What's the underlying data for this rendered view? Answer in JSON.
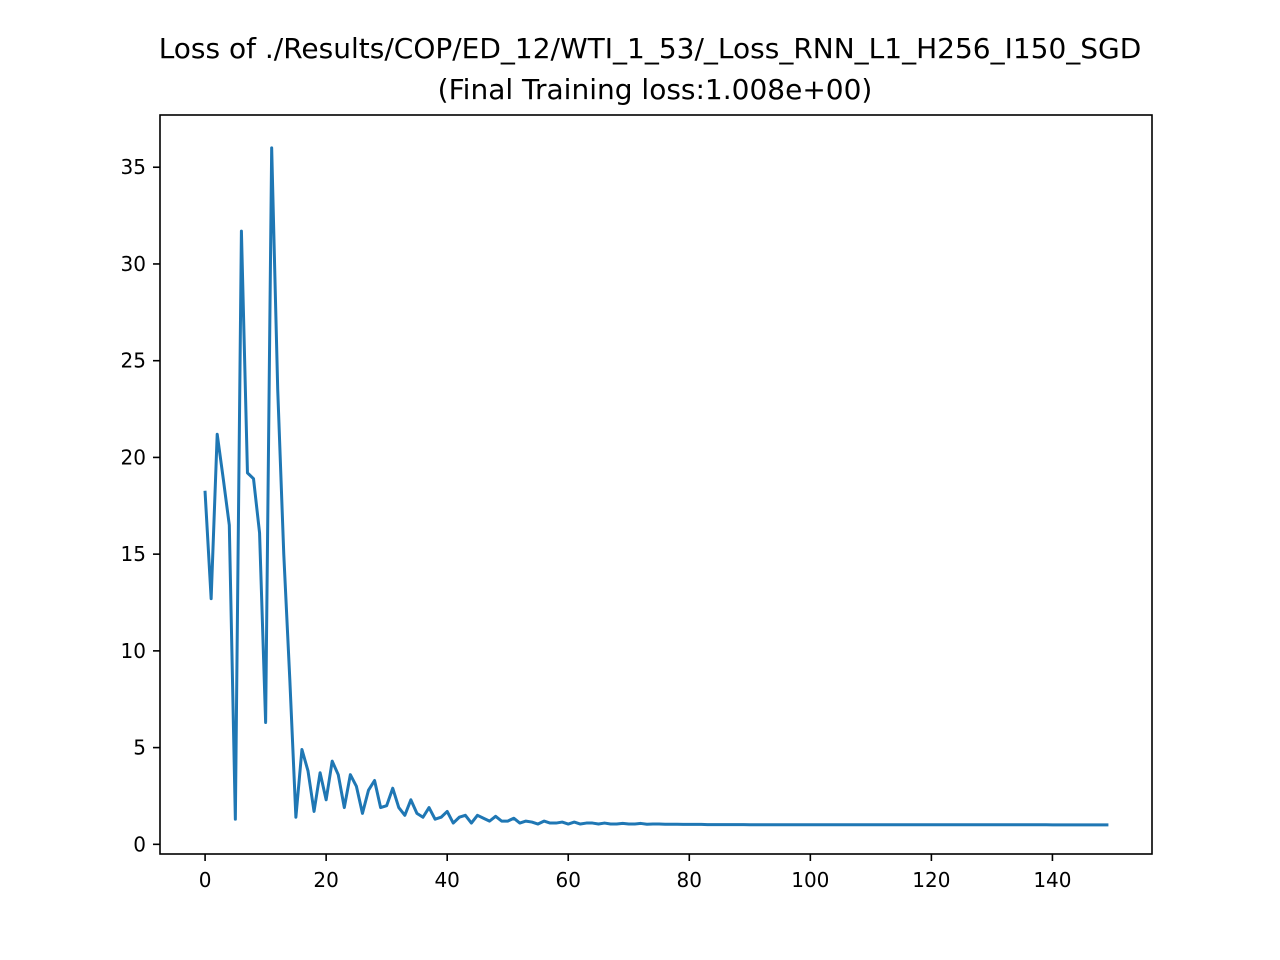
{
  "chart_data": {
    "type": "line",
    "title": "Loss of ./Results/COP/ED_12/WTI_1_53/_Loss_RNN_L1_H256_I150_SGD",
    "subtitle": "(Final Training loss:1.008e+00)",
    "xlabel": "",
    "ylabel": "",
    "xlim": [
      -7.45,
      156.45
    ],
    "ylim": [
      -0.5,
      37.7
    ],
    "x_ticks": [
      0,
      20,
      40,
      60,
      80,
      100,
      120,
      140
    ],
    "y_ticks": [
      0,
      5,
      10,
      15,
      20,
      25,
      30,
      35
    ],
    "grid": false,
    "line_color": "#1f77b4",
    "series": [
      {
        "values": [
          18.2,
          12.7,
          21.2,
          18.9,
          16.5,
          1.3,
          31.7,
          19.2,
          18.9,
          16.1,
          6.3,
          36.0,
          23.5,
          15.0,
          8.5,
          1.4,
          4.9,
          3.8,
          1.7,
          3.7,
          2.3,
          4.3,
          3.6,
          1.9,
          3.6,
          3.0,
          1.6,
          2.8,
          3.3,
          1.9,
          2.0,
          2.9,
          1.9,
          1.5,
          2.3,
          1.6,
          1.4,
          1.9,
          1.3,
          1.4,
          1.7,
          1.1,
          1.4,
          1.5,
          1.1,
          1.5,
          1.35,
          1.2,
          1.45,
          1.2,
          1.2,
          1.35,
          1.1,
          1.2,
          1.15,
          1.05,
          1.2,
          1.1,
          1.1,
          1.15,
          1.05,
          1.15,
          1.05,
          1.1,
          1.1,
          1.05,
          1.1,
          1.05,
          1.05,
          1.08,
          1.05,
          1.05,
          1.08,
          1.04,
          1.05,
          1.05,
          1.04,
          1.04,
          1.04,
          1.03,
          1.03,
          1.03,
          1.03,
          1.02,
          1.02,
          1.02,
          1.02,
          1.02,
          1.02,
          1.02,
          1.015,
          1.015,
          1.015,
          1.015,
          1.015,
          1.015,
          1.013,
          1.013,
          1.013,
          1.013,
          1.012,
          1.012,
          1.012,
          1.012,
          1.012,
          1.012,
          1.011,
          1.011,
          1.011,
          1.011,
          1.011,
          1.011,
          1.01,
          1.01,
          1.01,
          1.01,
          1.01,
          1.01,
          1.01,
          1.01,
          1.01,
          1.01,
          1.01,
          1.009,
          1.009,
          1.009,
          1.009,
          1.009,
          1.009,
          1.009,
          1.009,
          1.009,
          1.009,
          1.009,
          1.009,
          1.009,
          1.009,
          1.009,
          1.009,
          1.009,
          1.008,
          1.008,
          1.008,
          1.008,
          1.008,
          1.008,
          1.008,
          1.008,
          1.008,
          1.008
        ]
      }
    ]
  }
}
